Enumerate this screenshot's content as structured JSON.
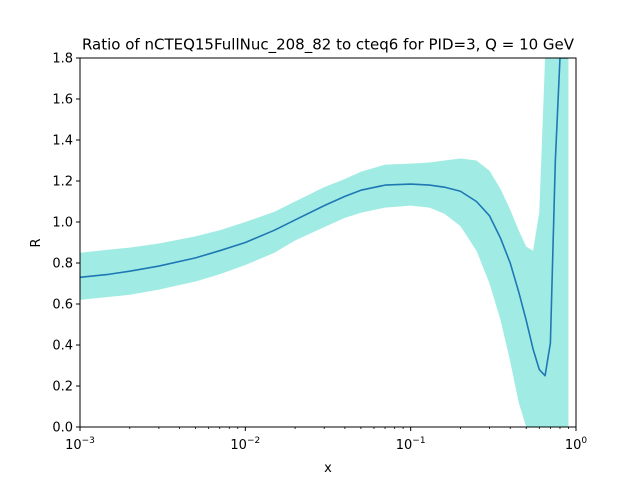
{
  "chart_data": {
    "type": "line",
    "title": "Ratio of nCTEQ15FullNuc_208_82 to cteq6 for PID=3, Q = 10 GeV",
    "xlabel": "x",
    "ylabel": "R",
    "xscale": "log",
    "xlim": [
      0.001,
      1
    ],
    "ylim": [
      0.0,
      1.8
    ],
    "grid": false,
    "x_ticks": [
      {
        "value": 0.001,
        "base": "10",
        "exp": "−3"
      },
      {
        "value": 0.01,
        "base": "10",
        "exp": "−2"
      },
      {
        "value": 0.1,
        "base": "10",
        "exp": "−1"
      },
      {
        "value": 1,
        "base": "10",
        "exp": "0"
      }
    ],
    "y_ticks": [
      "0.0",
      "0.2",
      "0.4",
      "0.6",
      "0.8",
      "1.0",
      "1.2",
      "1.4",
      "1.6",
      "1.8"
    ],
    "colors": {
      "line": "#1f77b4",
      "band": "#a0ece4"
    },
    "series": [
      {
        "x": [
          0.001,
          0.0015,
          0.002,
          0.003,
          0.005,
          0.007,
          0.01,
          0.015,
          0.02,
          0.03,
          0.04,
          0.05,
          0.07,
          0.1,
          0.13,
          0.16,
          0.2,
          0.25,
          0.3,
          0.35,
          0.4,
          0.45,
          0.5,
          0.55,
          0.6,
          0.65,
          0.7,
          0.75,
          0.8,
          0.85,
          0.9
        ],
        "values": [
          0.73,
          0.745,
          0.76,
          0.785,
          0.825,
          0.86,
          0.9,
          0.96,
          1.01,
          1.08,
          1.125,
          1.155,
          1.18,
          1.185,
          1.18,
          1.17,
          1.15,
          1.1,
          1.03,
          0.92,
          0.8,
          0.66,
          0.52,
          0.38,
          0.28,
          0.25,
          0.41,
          1.3,
          1.8,
          1.8,
          1.8
        ],
        "upper": [
          0.85,
          0.865,
          0.875,
          0.895,
          0.93,
          0.96,
          1.0,
          1.05,
          1.1,
          1.17,
          1.21,
          1.245,
          1.28,
          1.285,
          1.29,
          1.3,
          1.31,
          1.3,
          1.25,
          1.16,
          1.06,
          0.96,
          0.88,
          0.86,
          1.05,
          1.8,
          1.8,
          1.8,
          1.8,
          1.8,
          1.8
        ],
        "lower": [
          0.62,
          0.635,
          0.645,
          0.67,
          0.71,
          0.745,
          0.79,
          0.85,
          0.91,
          0.975,
          1.02,
          1.045,
          1.07,
          1.08,
          1.07,
          1.04,
          0.98,
          0.86,
          0.7,
          0.52,
          0.32,
          0.12,
          0.0,
          0.0,
          0.0,
          0.0,
          0.0,
          0.0,
          0.0,
          0.0,
          0.0
        ]
      }
    ]
  }
}
